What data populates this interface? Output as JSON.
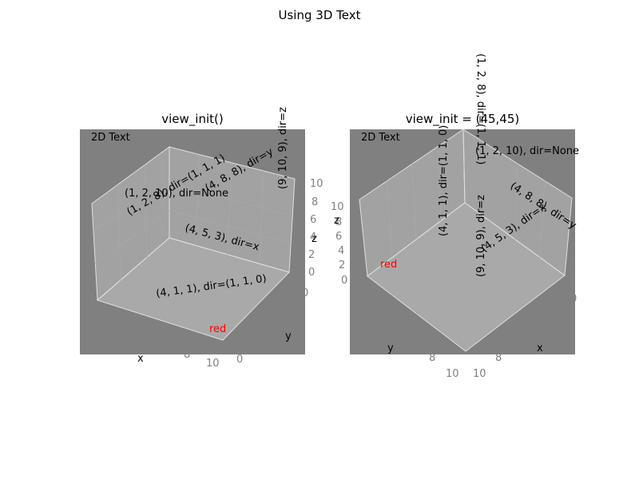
{
  "figure": {
    "suptitle": "Using 3D Text",
    "background": "#ffffff"
  },
  "chart_data": [
    {
      "type": "scatter",
      "title": "view_init()",
      "xlabel": "x",
      "ylabel": "y",
      "zlabel": "z",
      "xlim": [
        0,
        10
      ],
      "ylim": [
        0,
        10
      ],
      "zlim": [
        0,
        10
      ],
      "grid": true,
      "axes_background": "#808080",
      "pane_color": "#bdbdbd",
      "visible_tick_labels": {
        "x": [
          "8",
          "10"
        ],
        "y": [
          "0"
        ],
        "z": [
          "0",
          "2",
          "4",
          "6",
          "8",
          "10"
        ],
        "extra": [
          "0"
        ]
      },
      "text2d": {
        "label": "2D Text",
        "color": "#000000",
        "position": "top-left"
      },
      "red_text": {
        "label": "red",
        "color": "#ff0000"
      },
      "annotations": [
        {
          "label": "(1, 2, 10), dir=None",
          "x": 1,
          "y": 2,
          "z": 10
        },
        {
          "label": "(1, 2, 8), dir=(1, 1, 1)",
          "x": 1,
          "y": 2,
          "z": 8
        },
        {
          "label": "(4, 8, 8), dir=y",
          "x": 4,
          "y": 8,
          "z": 8
        },
        {
          "label": "(9, 10, 9), dir=z",
          "x": 9,
          "y": 10,
          "z": 9
        },
        {
          "label": "(4, 5, 3), dir=x",
          "x": 4,
          "y": 5,
          "z": 3
        },
        {
          "label": "(4, 1, 1), dir=(1, 1, 0)",
          "x": 4,
          "y": 1,
          "z": 1
        }
      ]
    },
    {
      "type": "scatter",
      "title": "view_init = (45,45)",
      "xlabel": "x",
      "ylabel": "y",
      "zlabel": "z",
      "xlim": [
        0,
        10
      ],
      "ylim": [
        0,
        10
      ],
      "zlim": [
        0,
        10
      ],
      "grid": true,
      "axes_background": "#808080",
      "pane_color": "#bdbdbd",
      "visible_tick_labels": {
        "x": [
          "8",
          "10"
        ],
        "y": [
          "8",
          "10"
        ],
        "z": [
          "0",
          "2",
          "4",
          "6",
          "8",
          "10"
        ],
        "extra": [
          "0"
        ]
      },
      "text2d": {
        "label": "2D Text",
        "color": "#000000",
        "position": "top-left"
      },
      "red_text": {
        "label": "red",
        "color": "#ff0000"
      },
      "annotations": [
        {
          "label": "(1, 2, 10), dir=None",
          "x": 1,
          "y": 2,
          "z": 10
        },
        {
          "label": "(1, 2, 8), dir=(1, 1, 1)",
          "x": 1,
          "y": 2,
          "z": 8
        },
        {
          "label": "(4, 8, 8), dir=y",
          "x": 4,
          "y": 8,
          "z": 8
        },
        {
          "label": "(9, 10, 9), dir=z",
          "x": 9,
          "y": 10,
          "z": 9
        },
        {
          "label": "(4, 5, 3), dir=x",
          "x": 4,
          "y": 5,
          "z": 3
        },
        {
          "label": "(4, 1, 1), dir=(1, 1, 0)",
          "x": 4,
          "y": 1,
          "z": 1
        }
      ]
    }
  ]
}
